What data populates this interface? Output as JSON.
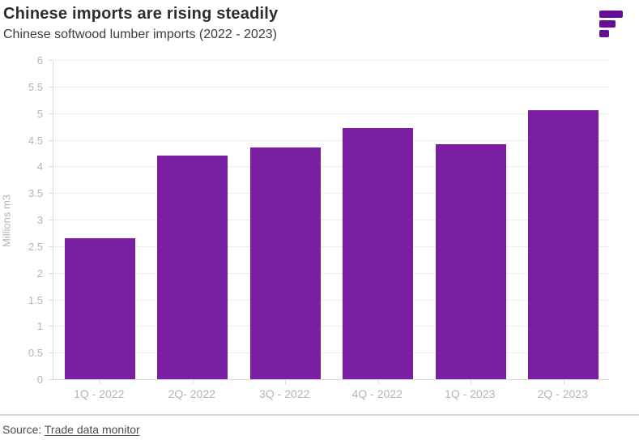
{
  "header": {
    "title": "Chinese imports are rising steadily",
    "subtitle": "Chinese softwood lumber imports (2022 - 2023)"
  },
  "logo": {
    "description": "three purple horizontal bars of decreasing width",
    "color": "#650D96"
  },
  "chart_data": {
    "type": "bar",
    "title": "Chinese imports are rising steadily",
    "subtitle": "Chinese softwood lumber imports (2022 - 2023)",
    "categories": [
      "1Q - 2022",
      "2Q- 2022",
      "3Q - 2022",
      "4Q - 2022",
      "1Q - 2023",
      "2Q - 2023"
    ],
    "values": [
      2.65,
      4.2,
      4.35,
      4.72,
      4.42,
      5.05
    ],
    "xlabel": "",
    "ylabel": "Millions m3",
    "ylim": [
      0,
      6
    ],
    "ytick_step": 0.5,
    "ytick_labels": [
      "0",
      "0.5",
      "1",
      "1.5",
      "2",
      "2.5",
      "3",
      "3.5",
      "4",
      "4.5",
      "5",
      "5.5",
      "6"
    ],
    "grid": true,
    "legend": "none",
    "bar_color": "#7A1FA2",
    "axis_text_color": "#b5b5b5",
    "grid_color": "#ececec",
    "axis_line_color": "#d9d9d9"
  },
  "footer": {
    "source_label": "Source:",
    "source_link": "Trade data monitor"
  }
}
